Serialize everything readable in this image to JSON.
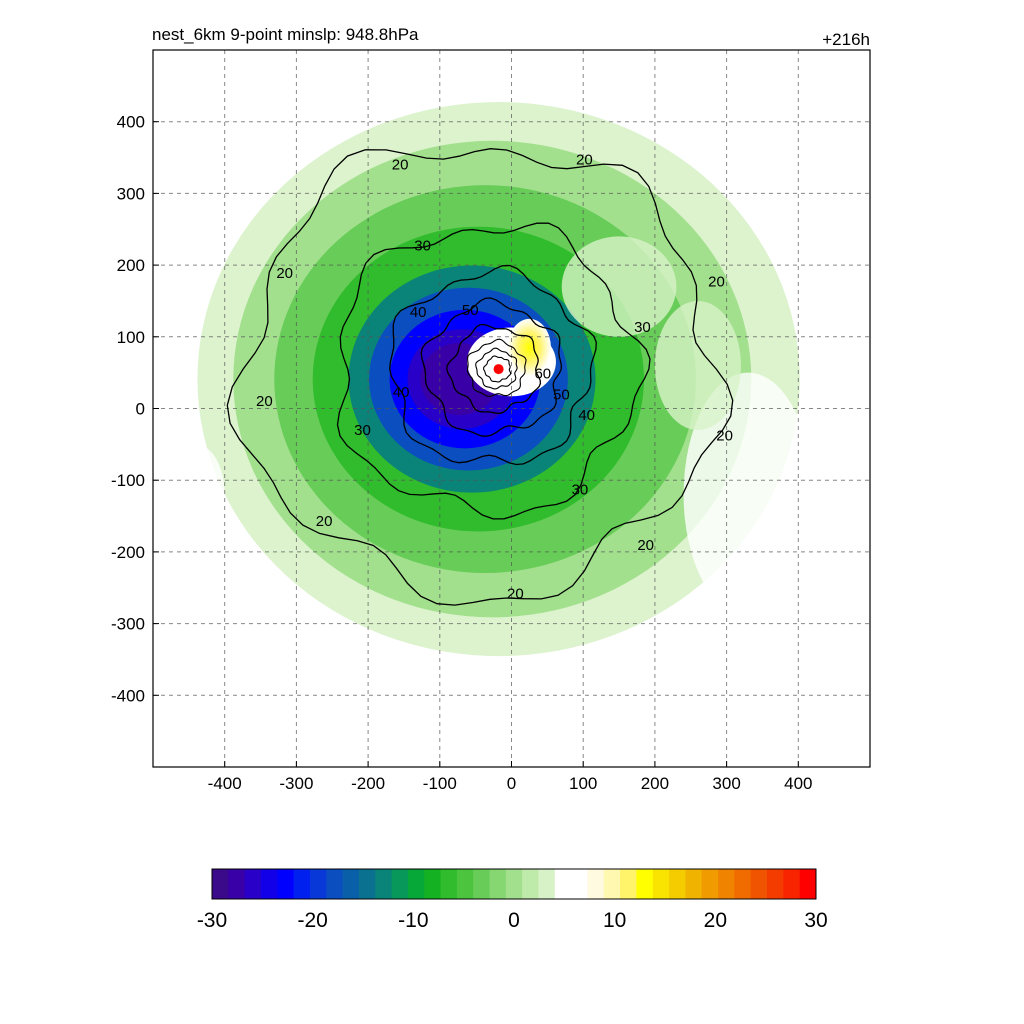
{
  "chart_data": {
    "type": "heatmap",
    "title": "nest_6km  9-point minslp: 948.8hPa",
    "subtitle_right": "+216h",
    "xlabel": "",
    "ylabel": "",
    "xlim": [
      -500,
      500
    ],
    "ylim": [
      -500,
      500
    ],
    "x_ticks": [
      -400,
      -300,
      -200,
      -100,
      0,
      100,
      200,
      300,
      400
    ],
    "y_ticks": [
      400,
      300,
      200,
      100,
      0,
      -100,
      -200,
      -300,
      -400
    ],
    "grid": true,
    "storm_center": {
      "x": -18,
      "y": 55
    },
    "colorbar": {
      "min": -30,
      "max": 30,
      "ticks": [
        -30,
        -20,
        -10,
        0,
        10,
        20,
        30
      ],
      "colors": [
        "#3a0a8a",
        "#3800a6",
        "#2800c8",
        "#1200e8",
        "#0000ff",
        "#0020f0",
        "#0838d8",
        "#0a4ec0",
        "#0a60a8",
        "#0a7290",
        "#0a8478",
        "#08985a",
        "#06a838",
        "#14b222",
        "#30bc2c",
        "#4cc43e",
        "#68cc58",
        "#86d672",
        "#a2e08e",
        "#beeaaa",
        "#d8f2c8",
        "#ffffff",
        "#ffffff",
        "#fffae0",
        "#fff8b0",
        "#fff46a",
        "#ffff00",
        "#f8e400",
        "#f4cc00",
        "#f0b400",
        "#f09c00",
        "#f08400",
        "#f06c00",
        "#f05400",
        "#f43c00",
        "#f82400",
        "#ff0000"
      ]
    },
    "contour_levels": [
      20,
      30,
      40,
      50,
      60
    ],
    "contour_labels": [
      "20",
      "20",
      "20",
      "20",
      "20",
      "20",
      "20",
      "20",
      "20",
      "30",
      "30",
      "30",
      "30",
      "40",
      "40",
      "40",
      "50",
      "50",
      "60"
    ]
  }
}
